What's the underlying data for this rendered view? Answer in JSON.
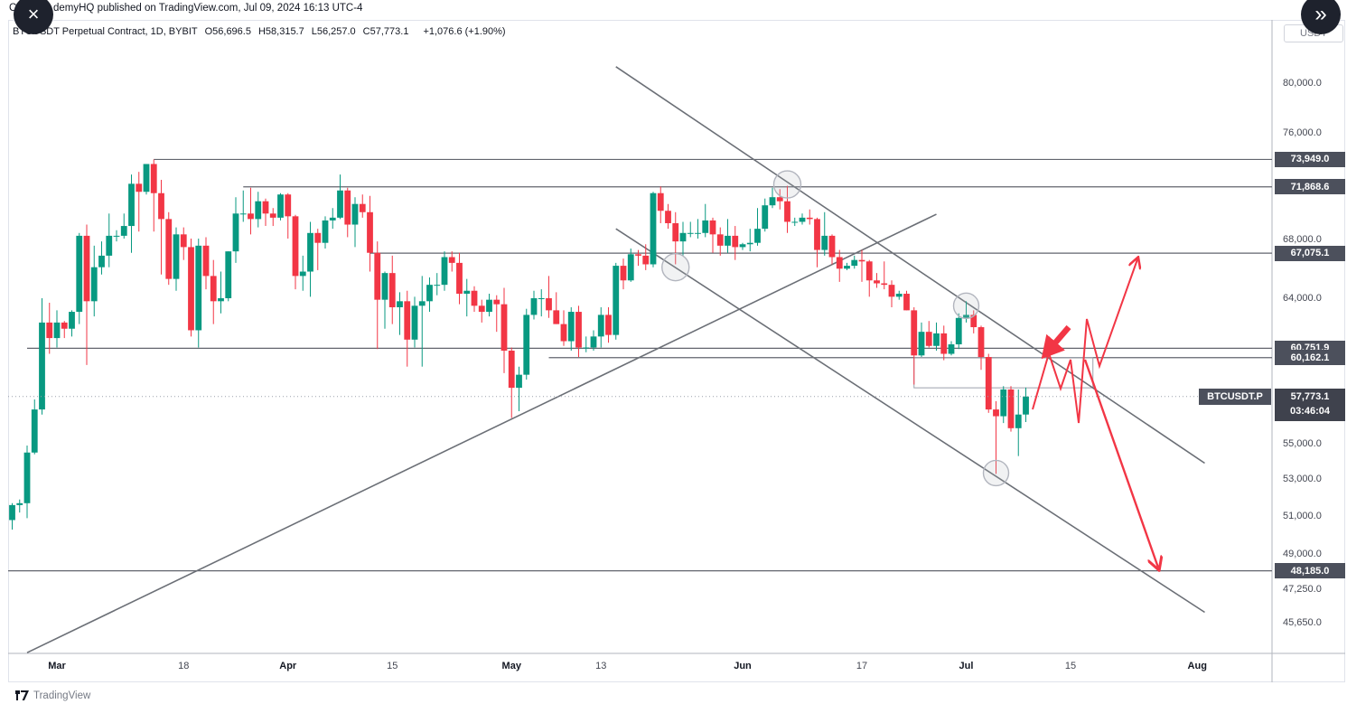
{
  "publish_bar": {
    "prefix": "C",
    "text": "demyHQ published on TradingView.com, Jul 09, 2024 16:13 UTC-4"
  },
  "toolbar": {
    "close_icon": "×",
    "next_icon": "»"
  },
  "header": {
    "symbol_description": "BTCUSDT Perpetual Contract, 1D, BYBIT",
    "ohlc": [
      {
        "label": "O",
        "value": "56,696.5"
      },
      {
        "label": "H",
        "value": "58,315.7"
      },
      {
        "label": "L",
        "value": "56,257.0"
      },
      {
        "label": "C",
        "value": "57,773.1"
      }
    ],
    "change": "+1,076.6 (+1.90%)"
  },
  "price_axis": {
    "currency": "USDT",
    "ticks": [
      {
        "price": 80000,
        "label": "80,000.0"
      },
      {
        "price": 76000,
        "label": "76,000.0"
      },
      {
        "price": 68000,
        "label": "68,000.0"
      },
      {
        "price": 64000,
        "label": "64,000.0"
      },
      {
        "price": 55000,
        "label": "55,000.0"
      },
      {
        "price": 53000,
        "label": "53,000.0"
      },
      {
        "price": 51000,
        "label": "51,000.0"
      },
      {
        "price": 49000,
        "label": "49,000.0"
      },
      {
        "price": 47250,
        "label": "47,250.0"
      },
      {
        "price": 45650,
        "label": "45,650.0"
      }
    ],
    "badges": [
      {
        "price": 73949.0,
        "label": "73,949.0"
      },
      {
        "price": 71868.6,
        "label": "71,868.6"
      },
      {
        "price": 67075.1,
        "label": "67,075.1"
      },
      {
        "price": 60751.9,
        "label": "60,751.9"
      },
      {
        "price": 60162.1,
        "label": "60,162.1"
      },
      {
        "price": 48185.0,
        "label": "48,185.0"
      }
    ],
    "current": {
      "price": 57773.1,
      "label": "57,773.1",
      "countdown": "03:46:04",
      "symbol_label": "BTCUSDT.P"
    }
  },
  "time_axis": [
    {
      "label": "Mar",
      "date": "2024-03-01",
      "bold": true
    },
    {
      "label": "18",
      "date": "2024-03-18",
      "bold": false
    },
    {
      "label": "Apr",
      "date": "2024-04-01",
      "bold": true
    },
    {
      "label": "15",
      "date": "2024-04-15",
      "bold": false
    },
    {
      "label": "May",
      "date": "2024-05-01",
      "bold": true
    },
    {
      "label": "13",
      "date": "2024-05-13",
      "bold": false
    },
    {
      "label": "Jun",
      "date": "2024-06-01",
      "bold": true
    },
    {
      "label": "17",
      "date": "2024-06-17",
      "bold": false
    },
    {
      "label": "Jul",
      "date": "2024-07-01",
      "bold": true
    },
    {
      "label": "15",
      "date": "2024-07-15",
      "bold": false
    },
    {
      "label": "Aug",
      "date": "2024-08-01",
      "bold": true
    }
  ],
  "footer": {
    "logo": "TradingView"
  },
  "colors": {
    "up": "#089981",
    "down": "#F23645",
    "annotation_red": "#F23645",
    "trendline_gray": "#6b6f76",
    "level_gray": "#787b86",
    "badge_bg": "#4c505c",
    "current_badge_bg": "#3f424d",
    "dark_button_bg": "#1e222d",
    "border": "#e0e3eb"
  },
  "chart_data": {
    "type": "candlestick",
    "title": "BTCUSDT Perpetual Contract, 1D, BYBIT",
    "symbol": "BTCUSDT.P",
    "exchange": "BYBIT",
    "interval": "1D",
    "price_unit": "USDT (values in thousands)",
    "ylim": [
      44000,
      83500
    ],
    "candles": [
      [
        "2024-02-24",
        50.8,
        51.7,
        50.3,
        51.6
      ],
      [
        "2024-02-25",
        51.6,
        51.9,
        51.2,
        51.7
      ],
      [
        "2024-02-26",
        51.7,
        54.9,
        50.9,
        54.5
      ],
      [
        "2024-02-27",
        54.5,
        57.6,
        54.4,
        57.0
      ],
      [
        "2024-02-28",
        57.0,
        64.0,
        56.7,
        62.4
      ],
      [
        "2024-02-29",
        62.4,
        63.7,
        60.4,
        61.4
      ],
      [
        "2024-03-01",
        61.4,
        63.2,
        60.8,
        62.4
      ],
      [
        "2024-03-02",
        62.4,
        62.5,
        61.4,
        62.0
      ],
      [
        "2024-03-03",
        62.0,
        63.2,
        61.5,
        63.1
      ],
      [
        "2024-03-04",
        63.1,
        68.5,
        62.3,
        68.3
      ],
      [
        "2024-03-05",
        68.3,
        69.1,
        59.7,
        63.8
      ],
      [
        "2024-03-06",
        63.8,
        67.6,
        62.8,
        66.1
      ],
      [
        "2024-03-07",
        66.1,
        67.9,
        65.6,
        66.9
      ],
      [
        "2024-03-08",
        66.9,
        69.9,
        66.1,
        68.3
      ],
      [
        "2024-03-09",
        68.3,
        68.7,
        67.9,
        68.3
      ],
      [
        "2024-03-10",
        68.3,
        69.9,
        68.1,
        69.0
      ],
      [
        "2024-03-11",
        69.0,
        72.8,
        67.1,
        72.1
      ],
      [
        "2024-03-12",
        72.1,
        73.0,
        68.6,
        71.5
      ],
      [
        "2024-03-13",
        71.5,
        73.6,
        71.3,
        73.6
      ],
      [
        "2024-03-14",
        73.6,
        73.949,
        68.6,
        71.4
      ],
      [
        "2024-03-15",
        71.4,
        72.4,
        65.6,
        69.5
      ],
      [
        "2024-03-16",
        69.5,
        70.0,
        64.9,
        65.3
      ],
      [
        "2024-03-17",
        65.3,
        68.9,
        64.5,
        68.4
      ],
      [
        "2024-03-18",
        68.4,
        68.9,
        66.6,
        67.5
      ],
      [
        "2024-03-19",
        67.5,
        68.1,
        61.5,
        61.9
      ],
      [
        "2024-03-20",
        61.9,
        68.1,
        60.8,
        67.6
      ],
      [
        "2024-03-21",
        67.6,
        68.2,
        64.6,
        65.5
      ],
      [
        "2024-03-22",
        65.5,
        66.6,
        62.3,
        63.8
      ],
      [
        "2024-03-23",
        63.8,
        65.8,
        63.0,
        64.0
      ],
      [
        "2024-03-24",
        64.0,
        67.2,
        63.8,
        67.2
      ],
      [
        "2024-03-25",
        67.2,
        71.1,
        66.4,
        69.9
      ],
      [
        "2024-03-26",
        69.9,
        71.6,
        69.3,
        69.9
      ],
      [
        "2024-03-27",
        69.9,
        71.8,
        68.4,
        69.5
      ],
      [
        "2024-03-28",
        69.5,
        71.5,
        68.9,
        70.8
      ],
      [
        "2024-03-29",
        70.8,
        71.0,
        69.0,
        69.9
      ],
      [
        "2024-03-30",
        69.9,
        70.3,
        69.0,
        69.6
      ],
      [
        "2024-03-31",
        69.6,
        71.4,
        69.4,
        71.3
      ],
      [
        "2024-04-01",
        71.3,
        71.4,
        68.1,
        69.7
      ],
      [
        "2024-04-02",
        69.7,
        69.8,
        64.6,
        65.5
      ],
      [
        "2024-04-03",
        65.5,
        66.9,
        64.5,
        65.8
      ],
      [
        "2024-04-04",
        65.8,
        69.3,
        64.1,
        68.5
      ],
      [
        "2024-04-05",
        68.5,
        68.8,
        65.9,
        67.8
      ],
      [
        "2024-04-06",
        67.8,
        69.7,
        67.4,
        69.4
      ],
      [
        "2024-04-07",
        69.4,
        70.3,
        68.8,
        69.6
      ],
      [
        "2024-04-08",
        69.6,
        72.8,
        69.5,
        71.6
      ],
      [
        "2024-04-09",
        71.6,
        71.8,
        68.2,
        69.1
      ],
      [
        "2024-04-10",
        69.1,
        71.1,
        67.5,
        70.6
      ],
      [
        "2024-04-11",
        70.6,
        71.3,
        69.6,
        70.0
      ],
      [
        "2024-04-12",
        70.0,
        71.2,
        65.8,
        67.1
      ],
      [
        "2024-04-13",
        67.1,
        67.9,
        60.7,
        63.9
      ],
      [
        "2024-04-14",
        63.9,
        65.8,
        62.0,
        65.7
      ],
      [
        "2024-04-15",
        65.7,
        66.9,
        62.3,
        63.4
      ],
      [
        "2024-04-16",
        63.4,
        64.4,
        61.6,
        63.8
      ],
      [
        "2024-04-17",
        63.8,
        64.5,
        59.6,
        61.3
      ],
      [
        "2024-04-18",
        61.3,
        64.1,
        60.8,
        63.5
      ],
      [
        "2024-04-19",
        63.5,
        65.5,
        59.6,
        63.8
      ],
      [
        "2024-04-20",
        63.8,
        65.4,
        63.1,
        64.9
      ],
      [
        "2024-04-21",
        64.9,
        65.7,
        64.2,
        64.9
      ],
      [
        "2024-04-22",
        64.9,
        67.2,
        64.5,
        66.8
      ],
      [
        "2024-04-23",
        66.8,
        67.2,
        65.8,
        66.4
      ],
      [
        "2024-04-24",
        66.4,
        67.1,
        63.6,
        64.3
      ],
      [
        "2024-04-25",
        64.3,
        65.3,
        62.8,
        64.5
      ],
      [
        "2024-04-26",
        64.5,
        64.8,
        63.1,
        63.5
      ],
      [
        "2024-04-27",
        63.5,
        63.9,
        62.4,
        63.1
      ],
      [
        "2024-04-28",
        63.1,
        64.3,
        62.8,
        63.9
      ],
      [
        "2024-04-29",
        63.9,
        64.2,
        61.8,
        63.6
      ],
      [
        "2024-04-30",
        63.6,
        64.7,
        59.2,
        60.6
      ],
      [
        "2024-05-01",
        60.6,
        60.8,
        56.5,
        58.3
      ],
      [
        "2024-05-02",
        58.3,
        59.6,
        56.9,
        59.1
      ],
      [
        "2024-05-03",
        59.1,
        63.3,
        58.8,
        62.9
      ],
      [
        "2024-05-04",
        62.9,
        64.5,
        62.6,
        64.0
      ],
      [
        "2024-05-05",
        64.0,
        64.6,
        62.8,
        64.0
      ],
      [
        "2024-05-06",
        64.0,
        65.5,
        62.7,
        63.2
      ],
      [
        "2024-05-07",
        63.2,
        64.4,
        62.3,
        62.3
      ],
      [
        "2024-05-08",
        62.3,
        63.2,
        60.9,
        61.2
      ],
      [
        "2024-05-09",
        61.2,
        63.4,
        60.6,
        63.1
      ],
      [
        "2024-05-10",
        63.1,
        63.5,
        60.2,
        60.8
      ],
      [
        "2024-05-11",
        60.8,
        61.5,
        60.5,
        60.8
      ],
      [
        "2024-05-12",
        60.8,
        61.9,
        60.6,
        61.5
      ],
      [
        "2024-05-13",
        61.5,
        63.4,
        60.8,
        62.9
      ],
      [
        "2024-05-14",
        62.9,
        63.4,
        61.1,
        61.6
      ],
      [
        "2024-05-15",
        61.6,
        66.4,
        61.3,
        66.2
      ],
      [
        "2024-05-16",
        66.2,
        66.7,
        64.6,
        65.2
      ],
      [
        "2024-05-17",
        65.2,
        67.4,
        65.1,
        67.0
      ],
      [
        "2024-05-18",
        67.0,
        67.3,
        66.2,
        66.9
      ],
      [
        "2024-05-19",
        66.9,
        67.7,
        65.9,
        66.3
      ],
      [
        "2024-05-20",
        66.3,
        71.5,
        66.1,
        71.4
      ],
      [
        "2024-05-21",
        71.4,
        71.9,
        69.2,
        70.1
      ],
      [
        "2024-05-22",
        70.1,
        70.6,
        68.8,
        69.2
      ],
      [
        "2024-05-23",
        69.2,
        70.0,
        66.3,
        67.9
      ],
      [
        "2024-05-24",
        67.9,
        69.3,
        66.9,
        68.5
      ],
      [
        "2024-05-25",
        68.5,
        69.3,
        68.2,
        68.5
      ],
      [
        "2024-05-26",
        68.5,
        69.5,
        68.1,
        68.5
      ],
      [
        "2024-05-27",
        68.5,
        70.6,
        68.2,
        69.4
      ],
      [
        "2024-05-28",
        69.4,
        69.6,
        67.1,
        68.4
      ],
      [
        "2024-05-29",
        68.4,
        68.9,
        66.9,
        67.6
      ],
      [
        "2024-05-30",
        67.6,
        69.5,
        67.1,
        68.3
      ],
      [
        "2024-05-31",
        68.3,
        69.0,
        66.6,
        67.5
      ],
      [
        "2024-06-01",
        67.5,
        67.8,
        67.3,
        67.7
      ],
      [
        "2024-06-02",
        67.7,
        68.8,
        67.2,
        67.8
      ],
      [
        "2024-06-03",
        67.8,
        70.3,
        67.6,
        68.8
      ],
      [
        "2024-06-04",
        68.8,
        71.0,
        68.6,
        70.5
      ],
      [
        "2024-06-05",
        70.5,
        71.8,
        70.3,
        71.1
      ],
      [
        "2024-06-06",
        71.1,
        71.7,
        70.2,
        70.8
      ],
      [
        "2024-06-07",
        70.8,
        71.95,
        68.5,
        69.3
      ],
      [
        "2024-06-08",
        69.3,
        69.6,
        69.0,
        69.3
      ],
      [
        "2024-06-09",
        69.3,
        69.9,
        69.1,
        69.6
      ],
      [
        "2024-06-10",
        69.6,
        70.2,
        69.1,
        69.5
      ],
      [
        "2024-06-11",
        69.5,
        69.6,
        66.1,
        67.3
      ],
      [
        "2024-06-12",
        67.3,
        70.0,
        66.9,
        68.3
      ],
      [
        "2024-06-13",
        68.3,
        68.4,
        66.3,
        66.8
      ],
      [
        "2024-06-14",
        66.8,
        67.3,
        65.1,
        66.0
      ],
      [
        "2024-06-15",
        66.0,
        66.4,
        65.9,
        66.2
      ],
      [
        "2024-06-16",
        66.2,
        66.9,
        66.0,
        66.6
      ],
      [
        "2024-06-17",
        66.6,
        67.3,
        65.1,
        66.5
      ],
      [
        "2024-06-18",
        66.5,
        66.6,
        64.1,
        65.2
      ],
      [
        "2024-06-19",
        65.2,
        65.7,
        64.7,
        65.0
      ],
      [
        "2024-06-20",
        65.0,
        66.5,
        64.6,
        64.9
      ],
      [
        "2024-06-21",
        64.9,
        65.2,
        63.4,
        64.1
      ],
      [
        "2024-06-22",
        64.1,
        64.5,
        63.9,
        64.3
      ],
      [
        "2024-06-23",
        64.3,
        64.5,
        63.2,
        63.2
      ],
      [
        "2024-06-24",
        63.2,
        63.4,
        58.5,
        60.3
      ],
      [
        "2024-06-25",
        60.3,
        62.4,
        60.2,
        61.8
      ],
      [
        "2024-06-26",
        61.8,
        62.5,
        60.8,
        60.9
      ],
      [
        "2024-06-27",
        60.9,
        62.4,
        60.6,
        61.7
      ],
      [
        "2024-06-28",
        61.7,
        62.2,
        60.0,
        60.4
      ],
      [
        "2024-06-29",
        60.4,
        61.2,
        60.3,
        61.0
      ],
      [
        "2024-06-30",
        61.0,
        63.0,
        60.7,
        62.7
      ],
      [
        "2024-07-01",
        62.7,
        63.8,
        62.4,
        62.9
      ],
      [
        "2024-07-02",
        62.9,
        63.2,
        61.7,
        62.1
      ],
      [
        "2024-07-03",
        62.1,
        62.2,
        59.4,
        60.2
      ],
      [
        "2024-07-04",
        60.2,
        60.4,
        56.8,
        57.0
      ],
      [
        "2024-07-05",
        57.0,
        57.5,
        53.3,
        56.6
      ],
      [
        "2024-07-06",
        56.6,
        58.4,
        56.2,
        58.2
      ],
      [
        "2024-07-07",
        58.2,
        58.4,
        55.7,
        55.9
      ],
      [
        "2024-07-08",
        55.9,
        58.2,
        54.3,
        56.7
      ],
      [
        "2024-07-09",
        56.7,
        58.315,
        56.257,
        57.773
      ]
    ],
    "levels": [
      {
        "price": 73949.0,
        "from": "2024-03-14"
      },
      {
        "price": 71868.6,
        "from": "2024-03-26"
      },
      {
        "price": 67075.1,
        "from": "2024-04-12"
      },
      {
        "price": 60751.9,
        "from": "2024-02-26"
      },
      {
        "price": 60162.1,
        "from": "2024-05-06"
      },
      {
        "price": 48185.0,
        "from": "2024-02-22"
      }
    ],
    "current_price_line": 57773.1,
    "trendlines": [
      {
        "name": "ascending-support",
        "from": [
          "2024-02-26",
          44250
        ],
        "to": [
          "2024-06-27",
          69850
        ]
      },
      {
        "name": "channel-upper",
        "from": [
          "2024-05-15",
          81450
        ],
        "to": [
          "2024-08-02",
          53900
        ]
      },
      {
        "name": "channel-lower",
        "from": [
          "2024-05-15",
          68800
        ],
        "to": [
          "2024-08-02",
          46150
        ]
      }
    ],
    "touch_circles": [
      {
        "date": "2024-06-07",
        "price": 72050,
        "r": 15
      },
      {
        "date": "2024-05-23",
        "price": 66100,
        "r": 15
      },
      {
        "date": "2024-07-01",
        "price": 63500,
        "r": 14
      },
      {
        "date": "2024-07-05",
        "price": 53350,
        "r": 14
      }
    ],
    "range_box": {
      "from": "2024-06-24",
      "to": "2024-07-18",
      "top": 60162.1,
      "bottom": 58300
    },
    "annotations": {
      "bull_zigzag": [
        [
          1143,
          453
        ],
        [
          1161,
          391
        ],
        [
          1174,
          430
        ],
        [
          1185,
          398
        ],
        [
          1194,
          468
        ],
        [
          1203,
          353
        ],
        [
          1217,
          405
        ],
        [
          1259,
          287
        ]
      ],
      "bear_path": [
        [
          1201,
          398
        ],
        [
          1282,
          628
        ]
      ],
      "bold_arrow": [
        [
          1183,
          362
        ],
        [
          1158,
          391
        ]
      ]
    }
  }
}
